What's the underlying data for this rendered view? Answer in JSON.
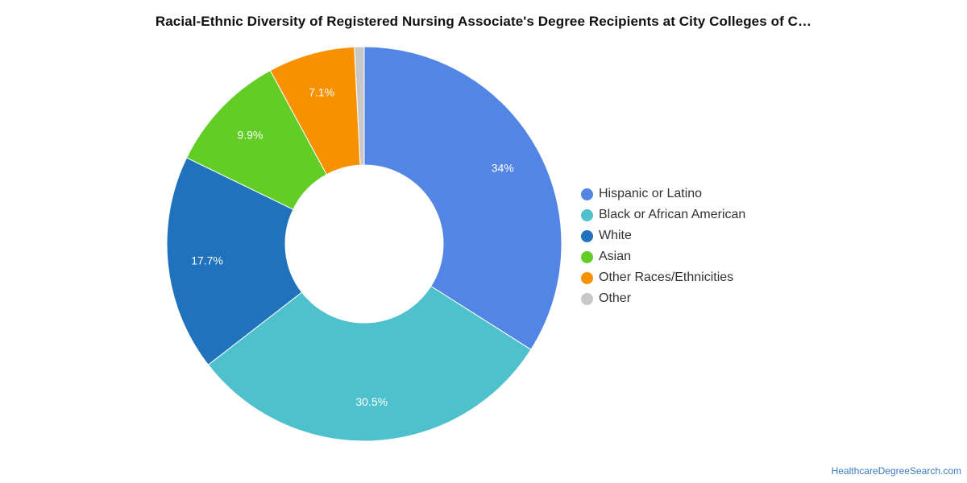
{
  "chart_data": {
    "type": "pie",
    "title": "Racial-Ethnic Diversity of Registered Nursing Associate's Degree Recipients at City Colleges of C…",
    "donut": true,
    "legend_position": "right",
    "categories": [
      "Hispanic or Latino",
      "Black or African American",
      "White",
      "Asian",
      "Other Races/Ethnicities",
      "Other"
    ],
    "values": [
      34,
      30.5,
      17.7,
      9.9,
      7.1,
      0.8
    ],
    "data_labels": [
      "34%",
      "30.5%",
      "17.7%",
      "9.9%",
      "7.1%",
      ""
    ],
    "colors": [
      "#5386e4",
      "#4fc1cd",
      "#1f72bb",
      "#62cd24",
      "#f79100",
      "#c8c8c8"
    ]
  },
  "footer": {
    "source": "HealthcareDegreeSearch.com"
  }
}
